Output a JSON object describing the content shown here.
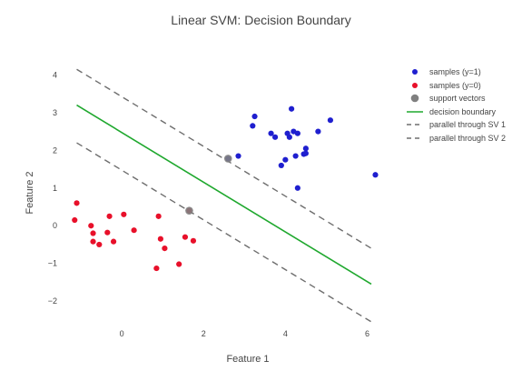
{
  "chart_data": {
    "type": "scatter",
    "title": "Linear SVM: Decision Boundary",
    "xlabel": "Feature 1",
    "ylabel": "Feature 2",
    "xlim": [
      -1.2,
      6.3
    ],
    "ylim": [
      -2.6,
      4.3
    ],
    "xticks": [
      0,
      2,
      4,
      6
    ],
    "yticks": [
      -2,
      -1,
      0,
      1,
      2,
      3,
      4
    ],
    "grid": false,
    "legend_position": "top-right",
    "series": [
      {
        "name": "samples (y=1)",
        "mode": "markers",
        "color": "#1f1fcf",
        "x": [
          2.6,
          2.85,
          3.2,
          3.25,
          3.65,
          3.75,
          3.9,
          4.0,
          4.05,
          4.1,
          4.15,
          4.2,
          4.25,
          4.3,
          4.3,
          4.45,
          4.5,
          4.5,
          4.8,
          5.1,
          6.2
        ],
        "y": [
          1.78,
          1.85,
          2.65,
          2.9,
          2.45,
          2.35,
          1.6,
          1.75,
          2.45,
          2.35,
          3.1,
          2.5,
          1.85,
          2.45,
          1.0,
          1.9,
          2.05,
          1.92,
          2.5,
          2.8,
          1.35
        ]
      },
      {
        "name": "samples (y=0)",
        "mode": "markers",
        "color": "#e8102a",
        "x": [
          -1.15,
          -1.1,
          -0.75,
          -0.7,
          -0.7,
          -0.55,
          -0.35,
          -0.3,
          -0.2,
          0.05,
          0.3,
          0.85,
          0.9,
          0.95,
          1.05,
          1.4,
          1.55,
          1.65,
          1.75
        ],
        "y": [
          0.15,
          0.6,
          0.0,
          -0.2,
          -0.42,
          -0.5,
          -0.18,
          0.25,
          -0.42,
          0.3,
          -0.12,
          -1.13,
          0.25,
          -0.35,
          -0.6,
          -1.02,
          -0.3,
          0.4,
          -0.4
        ]
      },
      {
        "name": "support vectors",
        "mode": "markers",
        "color": "#808080",
        "x": [
          2.6,
          1.65
        ],
        "y": [
          1.78,
          0.4
        ]
      },
      {
        "name": "decision boundary",
        "mode": "line",
        "color": "#1fa82e",
        "dash": "solid",
        "x": [
          -1.1,
          6.1
        ],
        "y": [
          3.2,
          -1.55
        ]
      },
      {
        "name": "parallel through SV 1",
        "mode": "line",
        "color": "#6e6e6e",
        "dash": "dash",
        "x": [
          -1.1,
          6.1
        ],
        "y": [
          4.15,
          -0.6
        ]
      },
      {
        "name": "parallel through SV 2",
        "mode": "line",
        "color": "#6e6e6e",
        "dash": "dash",
        "x": [
          -1.1,
          6.1
        ],
        "y": [
          2.2,
          -2.55
        ]
      }
    ]
  }
}
